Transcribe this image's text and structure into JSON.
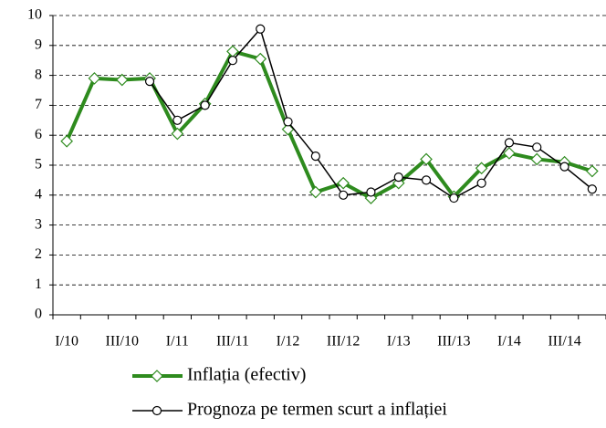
{
  "chart_data": {
    "type": "line",
    "categories": [
      "I/10",
      null,
      "III/10",
      null,
      "I/11",
      null,
      "III/11",
      null,
      "I/12",
      null,
      "III/12",
      null,
      "I/13",
      null,
      "III/13",
      null,
      "I/14",
      null,
      "III/14",
      null
    ],
    "series": [
      {
        "name": "Inflația (efectiv)",
        "color": "#2e8b1e",
        "marker": "diamond",
        "values": [
          5.8,
          7.9,
          7.85,
          7.9,
          6.05,
          7.05,
          8.8,
          8.55,
          6.2,
          4.1,
          4.4,
          3.9,
          4.4,
          5.2,
          3.95,
          4.9,
          5.4,
          5.2,
          5.1,
          4.8
        ]
      },
      {
        "name": "Prognoza pe termen scurt a inflației",
        "color": "#000000",
        "marker": "circle",
        "values": [
          null,
          null,
          null,
          7.8,
          6.5,
          7.0,
          8.5,
          9.55,
          6.45,
          5.3,
          4.0,
          4.1,
          4.6,
          4.5,
          3.9,
          4.4,
          5.75,
          5.6,
          4.95,
          4.2
        ]
      }
    ],
    "ylim": [
      0,
      10
    ],
    "yticks": [
      0,
      1,
      2,
      3,
      4,
      5,
      6,
      7,
      8,
      9,
      10
    ],
    "grid": true,
    "legend": "bottom"
  }
}
